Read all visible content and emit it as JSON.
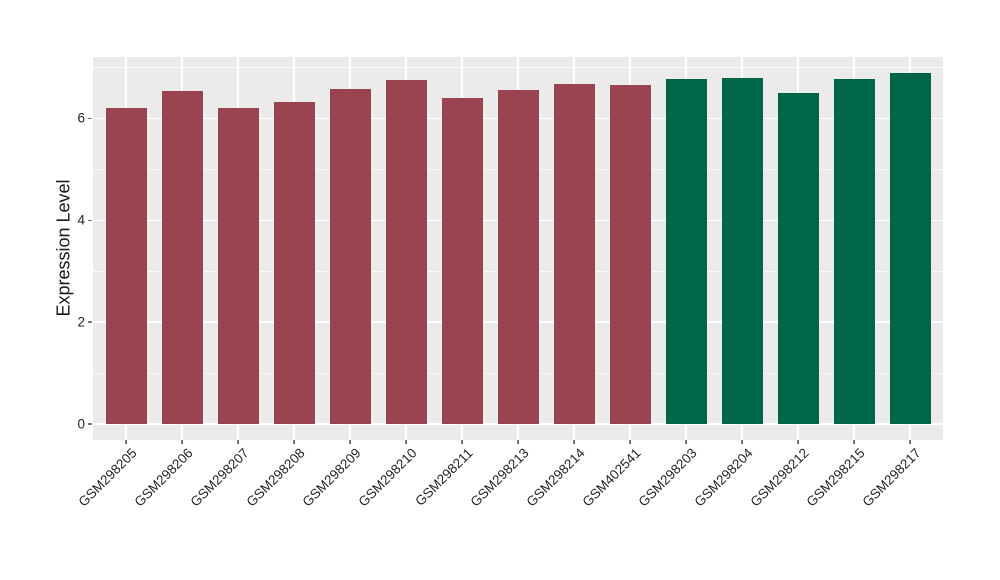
{
  "chart_data": {
    "type": "bar",
    "title": "",
    "xlabel": "",
    "ylabel": "Expression Level",
    "categories": [
      "GSM298205",
      "GSM298206",
      "GSM298207",
      "GSM298208",
      "GSM298209",
      "GSM298210",
      "GSM298211",
      "GSM298213",
      "GSM298214",
      "GSM402541",
      "GSM298203",
      "GSM298204",
      "GSM298212",
      "GSM298215",
      "GSM298217"
    ],
    "values": [
      6.21,
      6.54,
      6.21,
      6.33,
      6.57,
      6.75,
      6.41,
      6.56,
      6.68,
      6.66,
      6.77,
      6.79,
      6.49,
      6.77,
      6.89
    ],
    "bar_colors": [
      "#9A4451",
      "#9A4451",
      "#9A4451",
      "#9A4451",
      "#9A4451",
      "#9A4451",
      "#9A4451",
      "#9A4451",
      "#9A4451",
      "#9A4451",
      "#006648",
      "#006648",
      "#006648",
      "#006648",
      "#006648"
    ],
    "group_colors": {
      "maroon": "#9A4451",
      "green": "#006648"
    },
    "yticks": [
      0,
      2,
      4,
      6
    ],
    "ytick_labels": [
      "0",
      "2",
      "4",
      "6"
    ],
    "minor_gridlines": [
      1,
      3,
      5,
      7
    ],
    "ylim": [
      0,
      7.2
    ],
    "grid": "on",
    "legend": "none",
    "panel_background": "#EBEBEB",
    "gridline_color": "#FFFFFF"
  }
}
